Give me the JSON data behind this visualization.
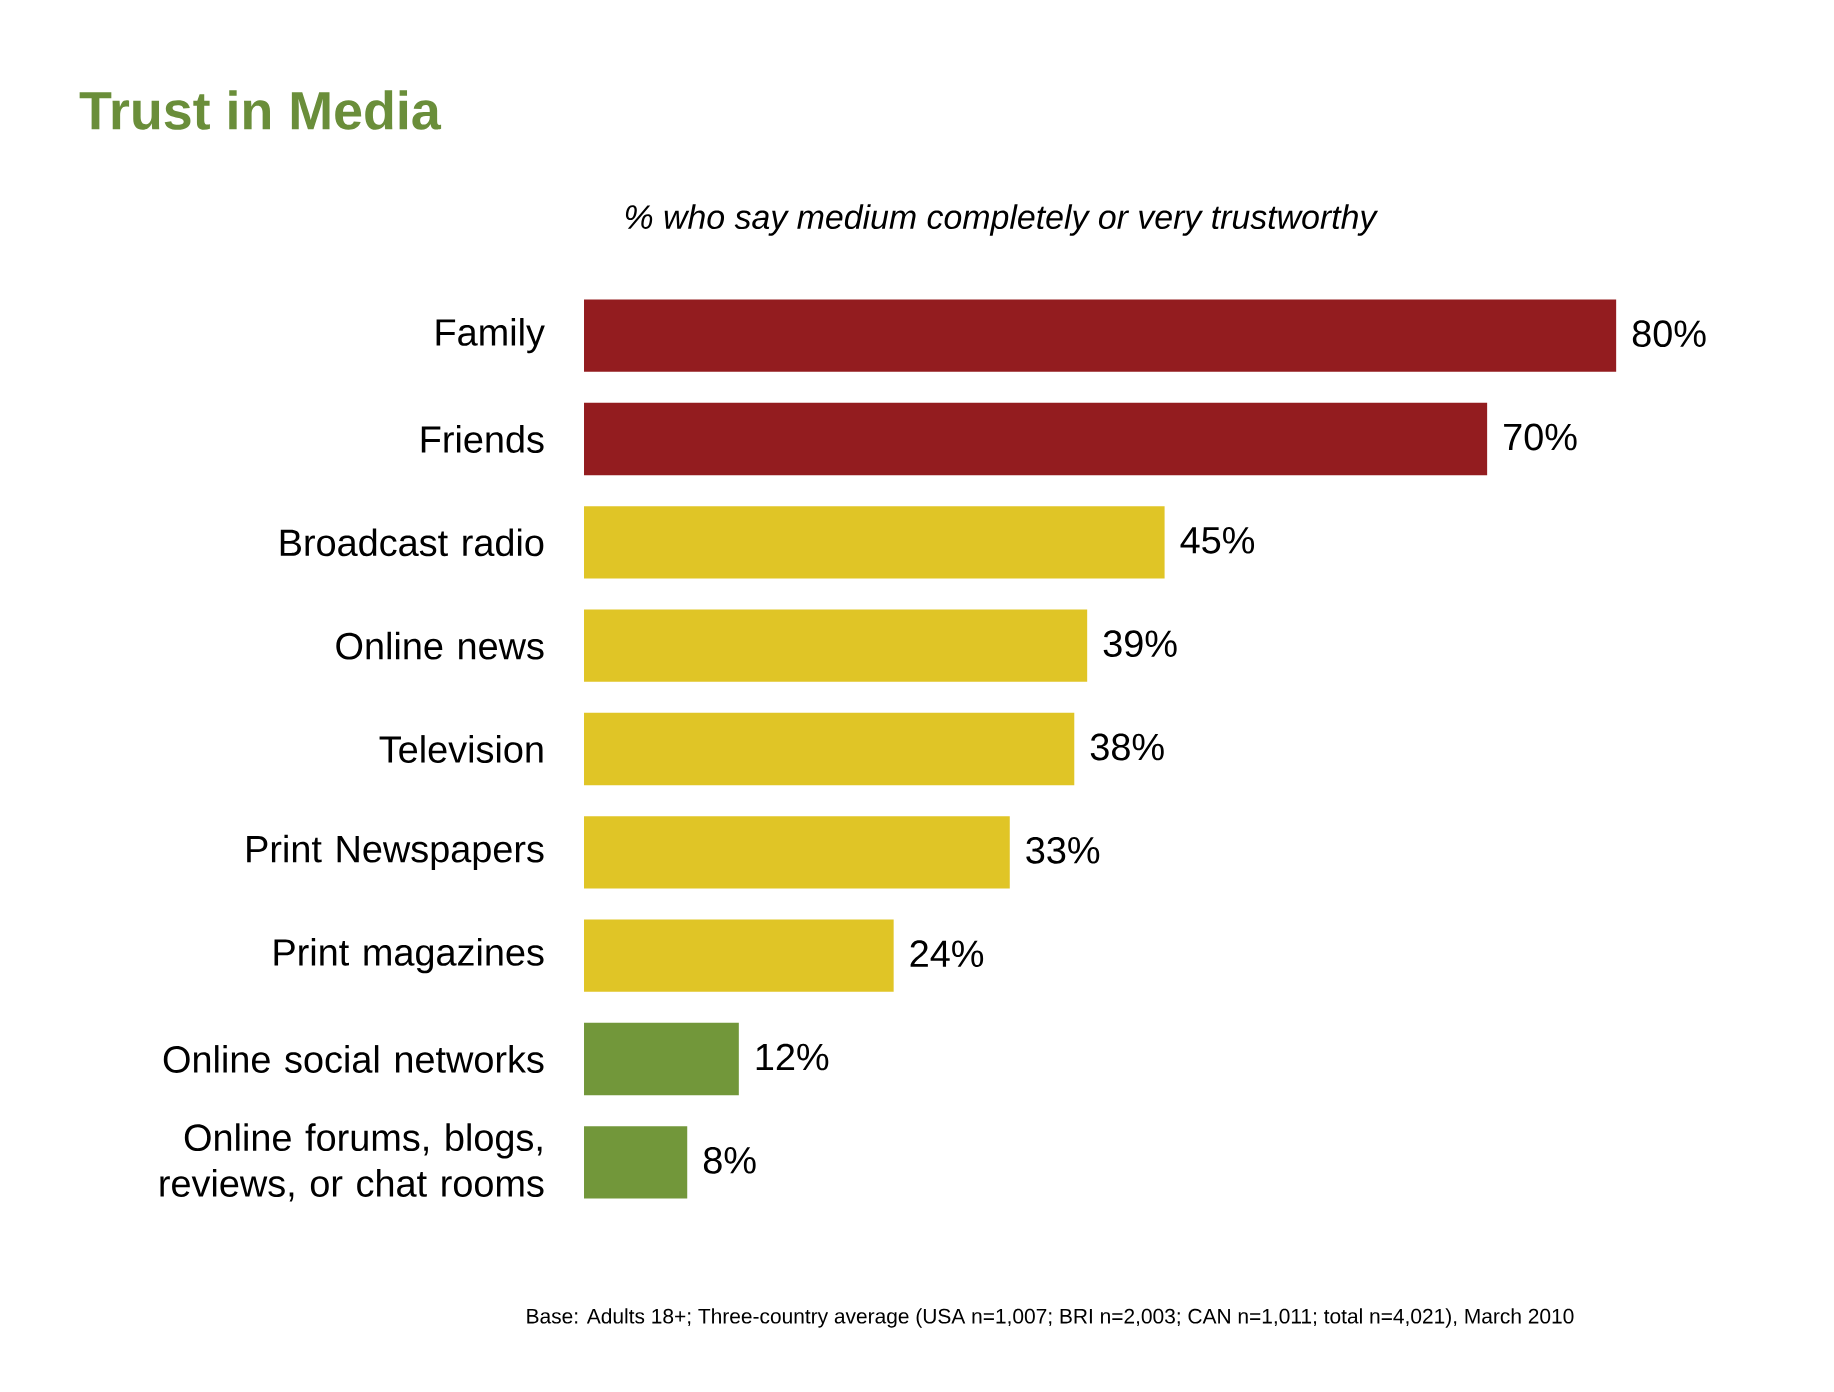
{
  "chart_data": {
    "type": "bar",
    "orientation": "horizontal",
    "title": "Trust in Media",
    "subtitle": "% who say medium completely or very trustworthy",
    "categories": [
      "Family",
      "Friends",
      "Broadcast radio",
      "Online news",
      "Television",
      "Print Newspapers",
      "Print magazines",
      "Online social networks",
      "Online forums, blogs, reviews, or chat rooms"
    ],
    "values": [
      80,
      70,
      45,
      39,
      38,
      33,
      24,
      12,
      8
    ],
    "colors": [
      "#931c1f",
      "#931c1f",
      "#e0c526",
      "#e0c526",
      "#e0c526",
      "#e0c526",
      "#e0c526",
      "#72973a",
      "#72973a"
    ],
    "value_labels": [
      "80%",
      "70%",
      "45%",
      "39%",
      "38%",
      "33%",
      "24%",
      "12%",
      "8%"
    ],
    "annotations": [
      "Base:  Adults 18+; Three-country average (USA n=1,007; BRI n=2,003; CAN n=1,011; total n=4,021), March 2010"
    ]
  }
}
